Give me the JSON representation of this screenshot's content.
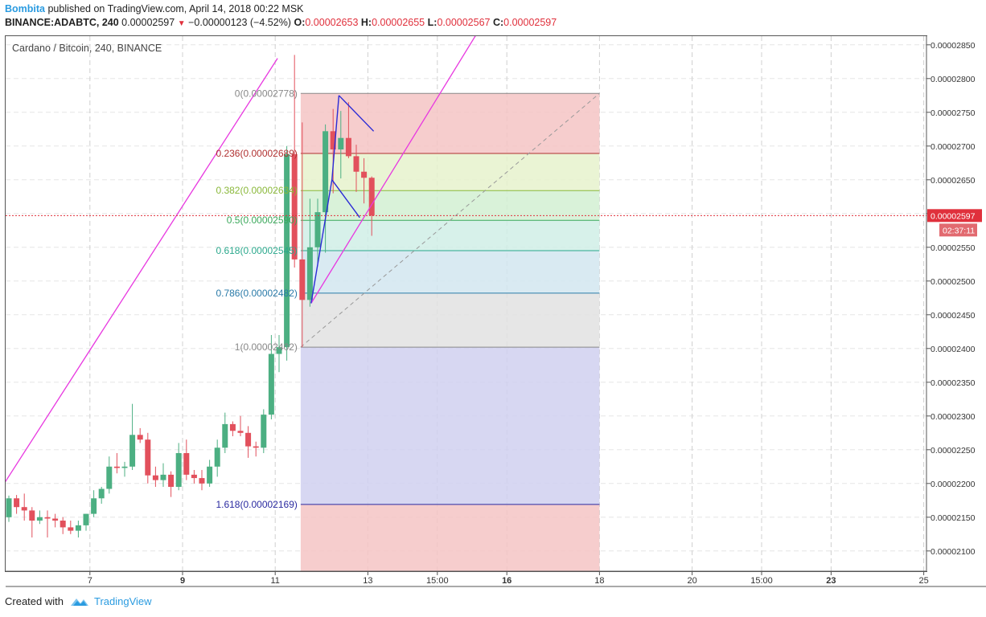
{
  "header": {
    "author": "Bombita",
    "published": "published on TradingView.com, April 14, 2018 00:22 MSK",
    "symbol": "BINANCE:ADABTC, 240",
    "last": "0.00002597",
    "change": "−0.00000123 (−4.52%)",
    "o_label": "O:",
    "o": "0.00002653",
    "h_label": "H:",
    "h": "0.00002655",
    "l_label": "L:",
    "l": "0.00002567",
    "c_label": "C:",
    "c": "0.00002597"
  },
  "chart_title": "Cardano / Bitcoin, 240, BINANCE",
  "footer": {
    "created_with": "Created with",
    "brand": "TradingView"
  },
  "colors": {
    "up": "#4caf82",
    "down": "#e2505c",
    "trend": "#e838e0",
    "pattern": "#2b2bd6",
    "price_line": "#e0303c"
  },
  "chart_data": {
    "type": "candlestick",
    "ylim": [
      2.07e-05,
      2.87e-05
    ],
    "x_range": [
      0,
      40
    ],
    "y_ticks": [
      2.1e-05,
      2.15e-05,
      2.2e-05,
      2.25e-05,
      2.3e-05,
      2.35e-05,
      2.4e-05,
      2.45e-05,
      2.5e-05,
      2.55e-05,
      2.6e-05,
      2.65e-05,
      2.7e-05,
      2.75e-05,
      2.8e-05,
      2.85e-05
    ],
    "y_tick_labels": [
      "0.00002100",
      "0.00002150",
      "0.00002200",
      "0.00002250",
      "0.00002300",
      "0.00002350",
      "0.00002400",
      "0.00002450",
      "0.00002500",
      "0.00002550",
      "0.00002600",
      "0.00002650",
      "0.00002700",
      "0.00002750",
      "0.00002800",
      "0.00002850"
    ],
    "x_ticks": [
      {
        "day": 3.5,
        "label": "7",
        "bold": false
      },
      {
        "day": 7.5,
        "label": "9",
        "bold": true
      },
      {
        "day": 11.5,
        "label": "11",
        "bold": false
      },
      {
        "day": 15.5,
        "label": "13",
        "bold": false
      },
      {
        "day": 18.5,
        "label": "15:00",
        "bold": false
      },
      {
        "day": 21.5,
        "label": "16",
        "bold": true
      },
      {
        "day": 25.5,
        "label": "18",
        "bold": false
      },
      {
        "day": 29.5,
        "label": "20",
        "bold": false
      },
      {
        "day": 32.5,
        "label": "15:00",
        "bold": false
      },
      {
        "day": 35.5,
        "label": "23",
        "bold": true
      },
      {
        "day": 39.5,
        "label": "25",
        "bold": false
      }
    ],
    "price_line": {
      "value": 2.597e-05,
      "label": "0.00002597",
      "countdown": "02:37:11"
    },
    "fib": {
      "x_start": 12.6,
      "x_end": 25.5,
      "levels": [
        {
          "ratio": "0",
          "value": 2.778e-05,
          "label": "0(0.00002778)",
          "color": "#888888"
        },
        {
          "ratio": "0.236",
          "value": 2.689e-05,
          "label": "0.236(0.00002689)",
          "color": "#b03030"
        },
        {
          "ratio": "0.382",
          "value": 2.634e-05,
          "label": "0.382(0.00002634)",
          "color": "#8ab83a"
        },
        {
          "ratio": "0.5",
          "value": 2.59e-05,
          "label": "0.5(0.00002590)",
          "color": "#3aa85a"
        },
        {
          "ratio": "0.618",
          "value": 2.545e-05,
          "label": "0.618(0.00002545)",
          "color": "#2aa88c"
        },
        {
          "ratio": "0.786",
          "value": 2.482e-05,
          "label": "0.786(0.00002482)",
          "color": "#2a7aa8"
        },
        {
          "ratio": "1",
          "value": 2.402e-05,
          "label": "1(0.00002402)",
          "color": "#888888"
        },
        {
          "ratio": "1.618",
          "value": 2.169e-05,
          "label": "1.618(0.00002169)",
          "color": "#2a2aa0"
        }
      ],
      "fills": [
        "#f4c4c4",
        "#e6f2cc",
        "#d2f0d2",
        "#d0eee6",
        "#d2e6f0",
        "#e2e2e2",
        "#d0d0f0",
        "#f4c4c4"
      ]
    },
    "candles": [
      {
        "x": 0.0,
        "o": 2.15e-05,
        "h": 2.182e-05,
        "l": 2.143e-05,
        "c": 2.178e-05
      },
      {
        "x": 0.333,
        "o": 2.178e-05,
        "h": 2.183e-05,
        "l": 2.155e-05,
        "c": 2.165e-05
      },
      {
        "x": 0.667,
        "o": 2.165e-05,
        "h": 2.185e-05,
        "l": 2.145e-05,
        "c": 2.16e-05
      },
      {
        "x": 1.0,
        "o": 2.16e-05,
        "h": 2.165e-05,
        "l": 2.12e-05,
        "c": 2.145e-05
      },
      {
        "x": 1.333,
        "o": 2.145e-05,
        "h": 2.16e-05,
        "l": 2.14e-05,
        "c": 2.15e-05
      },
      {
        "x": 1.667,
        "o": 2.15e-05,
        "h": 2.16e-05,
        "l": 2.12e-05,
        "c": 2.148e-05
      },
      {
        "x": 2.0,
        "o": 2.148e-05,
        "h": 2.155e-05,
        "l": 2.135e-05,
        "c": 2.145e-05
      },
      {
        "x": 2.333,
        "o": 2.145e-05,
        "h": 2.15e-05,
        "l": 2.125e-05,
        "c": 2.135e-05
      },
      {
        "x": 2.667,
        "o": 2.135e-05,
        "h": 2.145e-05,
        "l": 2.125e-05,
        "c": 2.13e-05
      },
      {
        "x": 3.0,
        "o": 2.13e-05,
        "h": 2.145e-05,
        "l": 2.12e-05,
        "c": 2.138e-05
      },
      {
        "x": 3.333,
        "o": 2.138e-05,
        "h": 2.155e-05,
        "l": 2.13e-05,
        "c": 2.155e-05
      },
      {
        "x": 3.667,
        "o": 2.155e-05,
        "h": 2.19e-05,
        "l": 2.15e-05,
        "c": 2.178e-05
      },
      {
        "x": 4.0,
        "o": 2.178e-05,
        "h": 2.195e-05,
        "l": 2.17e-05,
        "c": 2.192e-05
      },
      {
        "x": 4.333,
        "o": 2.192e-05,
        "h": 2.24e-05,
        "l": 2.185e-05,
        "c": 2.225e-05
      },
      {
        "x": 4.667,
        "o": 2.225e-05,
        "h": 2.245e-05,
        "l": 2.215e-05,
        "c": 2.223e-05
      },
      {
        "x": 5.0,
        "o": 2.223e-05,
        "h": 2.232e-05,
        "l": 2.21e-05,
        "c": 2.225e-05
      },
      {
        "x": 5.333,
        "o": 2.225e-05,
        "h": 2.318e-05,
        "l": 2.22e-05,
        "c": 2.272e-05
      },
      {
        "x": 5.667,
        "o": 2.272e-05,
        "h": 2.282e-05,
        "l": 2.26e-05,
        "c": 2.265e-05
      },
      {
        "x": 6.0,
        "o": 2.265e-05,
        "h": 2.275e-05,
        "l": 2.2e-05,
        "c": 2.212e-05
      },
      {
        "x": 6.333,
        "o": 2.212e-05,
        "h": 2.225e-05,
        "l": 2.195e-05,
        "c": 2.205e-05
      },
      {
        "x": 6.667,
        "o": 2.205e-05,
        "h": 2.23e-05,
        "l": 2.195e-05,
        "c": 2.213e-05
      },
      {
        "x": 7.0,
        "o": 2.213e-05,
        "h": 2.218e-05,
        "l": 2.18e-05,
        "c": 2.195e-05
      },
      {
        "x": 7.333,
        "o": 2.195e-05,
        "h": 2.26e-05,
        "l": 2.19e-05,
        "c": 2.245e-05
      },
      {
        "x": 7.667,
        "o": 2.245e-05,
        "h": 2.265e-05,
        "l": 2.205e-05,
        "c": 2.213e-05
      },
      {
        "x": 8.0,
        "o": 2.213e-05,
        "h": 2.22e-05,
        "l": 2.2e-05,
        "c": 2.208e-05
      },
      {
        "x": 8.333,
        "o": 2.208e-05,
        "h": 2.22e-05,
        "l": 2.19e-05,
        "c": 2.2e-05
      },
      {
        "x": 8.667,
        "o": 2.2e-05,
        "h": 2.235e-05,
        "l": 2.195e-05,
        "c": 2.225e-05
      },
      {
        "x": 9.0,
        "o": 2.225e-05,
        "h": 2.265e-05,
        "l": 2.21e-05,
        "c": 2.253e-05
      },
      {
        "x": 9.333,
        "o": 2.253e-05,
        "h": 2.305e-05,
        "l": 2.245e-05,
        "c": 2.288e-05
      },
      {
        "x": 9.667,
        "o": 2.288e-05,
        "h": 2.292e-05,
        "l": 2.27e-05,
        "c": 2.278e-05
      },
      {
        "x": 10.0,
        "o": 2.278e-05,
        "h": 2.3e-05,
        "l": 2.27e-05,
        "c": 2.275e-05
      },
      {
        "x": 10.333,
        "o": 2.275e-05,
        "h": 2.285e-05,
        "l": 2.238e-05,
        "c": 2.255e-05
      },
      {
        "x": 10.667,
        "o": 2.255e-05,
        "h": 2.262e-05,
        "l": 2.24e-05,
        "c": 2.253e-05
      },
      {
        "x": 11.0,
        "o": 2.253e-05,
        "h": 2.31e-05,
        "l": 2.245e-05,
        "c": 2.302e-05
      },
      {
        "x": 11.333,
        "o": 2.302e-05,
        "h": 2.42e-05,
        "l": 2.295e-05,
        "c": 2.392e-05
      },
      {
        "x": 11.667,
        "o": 2.392e-05,
        "h": 2.42e-05,
        "l": 2.365e-05,
        "c": 2.402e-05
      },
      {
        "x": 12.0,
        "o": 2.402e-05,
        "h": 2.7e-05,
        "l": 2.382e-05,
        "c": 2.688e-05
      },
      {
        "x": 12.333,
        "o": 2.688e-05,
        "h": 2.835e-05,
        "l": 2.52e-05,
        "c": 2.532e-05
      },
      {
        "x": 12.667,
        "o": 2.532e-05,
        "h": 2.735e-05,
        "l": 2.402e-05,
        "c": 2.472e-05
      },
      {
        "x": 13.0,
        "o": 2.472e-05,
        "h": 2.622e-05,
        "l": 2.462e-05,
        "c": 2.55e-05
      },
      {
        "x": 13.333,
        "o": 2.55e-05,
        "h": 2.622e-05,
        "l": 2.522e-05,
        "c": 2.602e-05
      },
      {
        "x": 13.667,
        "o": 2.602e-05,
        "h": 2.732e-05,
        "l": 2.542e-05,
        "c": 2.722e-05
      },
      {
        "x": 14.0,
        "o": 2.722e-05,
        "h": 2.755e-05,
        "l": 2.63e-05,
        "c": 2.695e-05
      },
      {
        "x": 14.333,
        "o": 2.695e-05,
        "h": 2.752e-05,
        "l": 2.652e-05,
        "c": 2.712e-05
      },
      {
        "x": 14.667,
        "o": 2.712e-05,
        "h": 2.765e-05,
        "l": 2.682e-05,
        "c": 2.685e-05
      },
      {
        "x": 15.0,
        "o": 2.685e-05,
        "h": 2.702e-05,
        "l": 2.632e-05,
        "c": 2.662e-05
      },
      {
        "x": 15.333,
        "o": 2.662e-05,
        "h": 2.682e-05,
        "l": 2.615e-05,
        "c": 2.653e-05
      },
      {
        "x": 15.667,
        "o": 2.653e-05,
        "h": 2.655e-05,
        "l": 2.567e-05,
        "c": 2.597e-05
      }
    ],
    "trend_lines": [
      {
        "name": "left-channel-line",
        "color": "trend",
        "points": [
          [
            -0.2,
            2.2e-05
          ],
          [
            11.6,
            2.83e-05
          ]
        ]
      },
      {
        "name": "right-channel-line",
        "color": "trend",
        "points": [
          [
            13.05,
            2.467e-05
          ],
          [
            20.8,
            2.9e-05
          ]
        ]
      },
      {
        "name": "fib-diagonal",
        "color": "dashed",
        "points": [
          [
            12.6,
            2.402e-05
          ],
          [
            25.5,
            2.778e-05
          ]
        ]
      }
    ],
    "patterns": [
      {
        "name": "pole",
        "points": [
          [
            13.05,
            2.467e-05
          ],
          [
            13.95,
            2.65e-05
          ],
          [
            14.25,
            2.775e-05
          ]
        ]
      },
      {
        "name": "flag-upper",
        "points": [
          [
            14.25,
            2.775e-05
          ],
          [
            15.75,
            2.722e-05
          ]
        ]
      },
      {
        "name": "flag-lower",
        "points": [
          [
            13.95,
            2.65e-05
          ],
          [
            15.15,
            2.594e-05
          ]
        ]
      }
    ]
  }
}
